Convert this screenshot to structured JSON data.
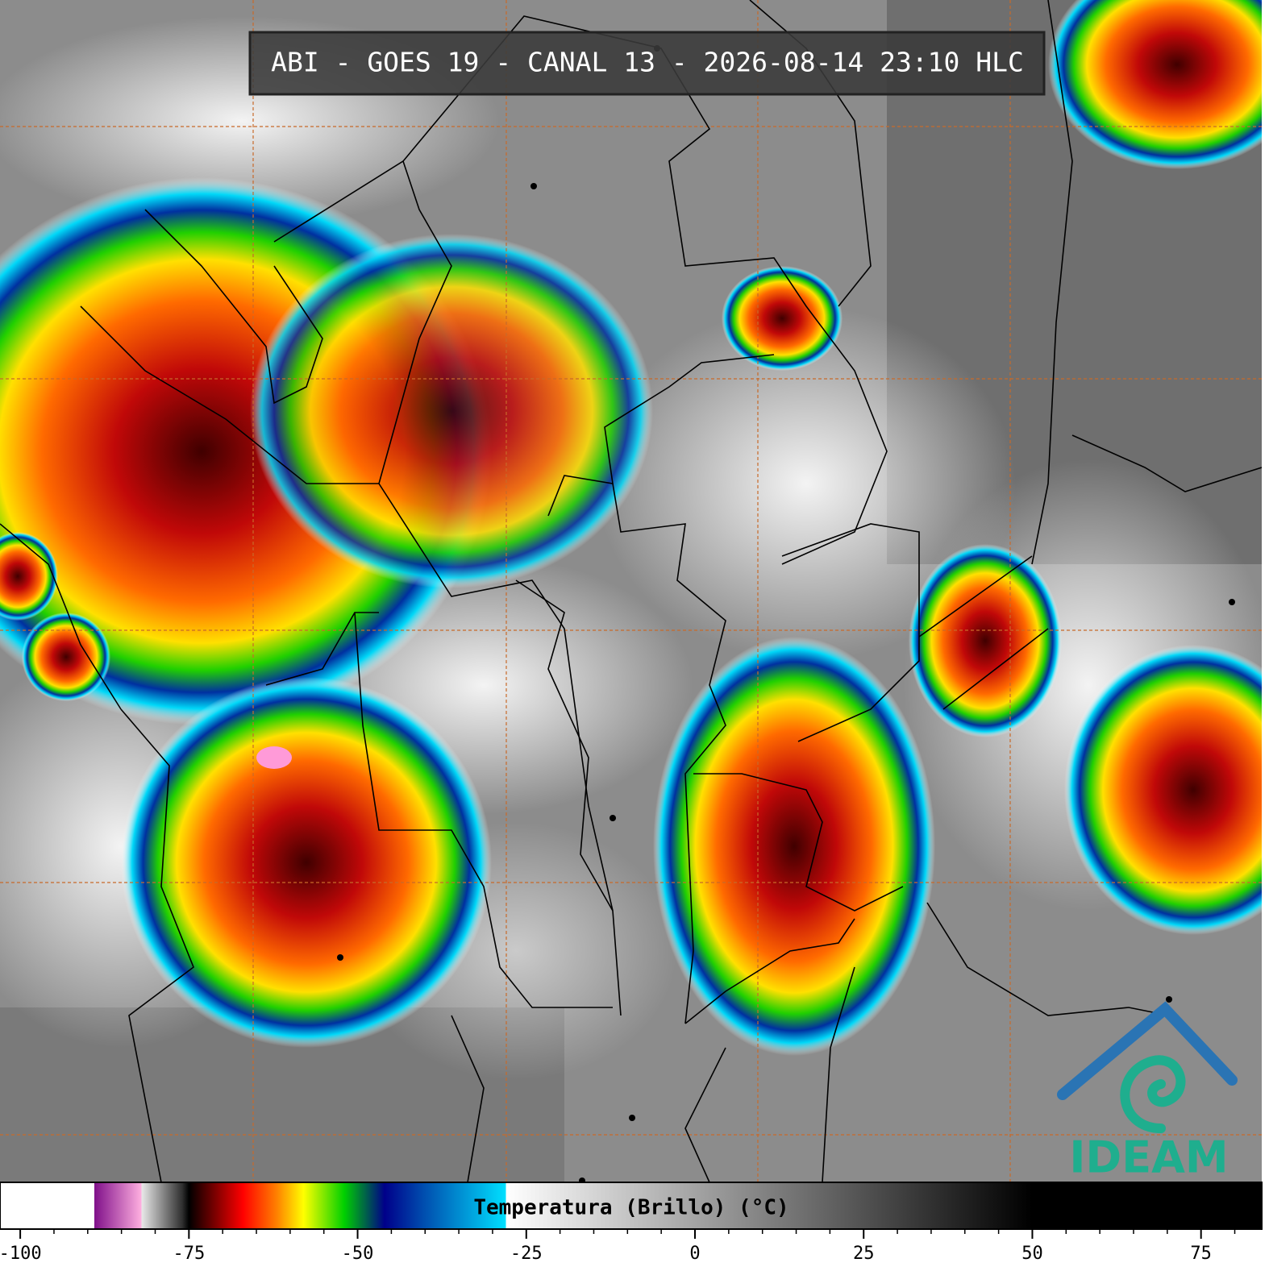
{
  "header": {
    "title": "ABI - GOES 19 - CANAL 13 - 2026-08-14 23:10 HLC"
  },
  "colorbar": {
    "label": "Temperatura (Brillo) (°C)",
    "lim": [
      -103,
      84
    ],
    "ticks": [
      -100,
      -75,
      -50,
      -25,
      0,
      25,
      50,
      75
    ],
    "minor_ticks": [
      -95,
      -90,
      -85,
      -80,
      -70,
      -65,
      -60,
      -55,
      -45,
      -40,
      -35,
      -30,
      -20,
      -15,
      -10,
      -5,
      5,
      10,
      15,
      20,
      30,
      35,
      40,
      45,
      55,
      60,
      65,
      70,
      80
    ],
    "stops": [
      {
        "value": -103,
        "color": "#ffffff"
      },
      {
        "value": -89,
        "color": "#ffffff"
      },
      {
        "value": -89,
        "color": "#80108a"
      },
      {
        "value": -82,
        "color": "#ffb0e0"
      },
      {
        "value": -82,
        "color": "#e8e8e8"
      },
      {
        "value": -76,
        "color": "#303030"
      },
      {
        "value": -75,
        "color": "#000000"
      },
      {
        "value": -71,
        "color": "#800000"
      },
      {
        "value": -67,
        "color": "#ff0000"
      },
      {
        "value": -62,
        "color": "#ff8000"
      },
      {
        "value": -58,
        "color": "#ffff00"
      },
      {
        "value": -52,
        "color": "#00d000"
      },
      {
        "value": -46,
        "color": "#00008a"
      },
      {
        "value": -40,
        "color": "#0050b0"
      },
      {
        "value": -28,
        "color": "#00e0ff"
      },
      {
        "value": -28,
        "color": "#ffffff"
      },
      {
        "value": 50,
        "color": "#000000"
      },
      {
        "value": 84,
        "color": "#000000"
      }
    ]
  },
  "logo": {
    "text": "IDEAM"
  }
}
